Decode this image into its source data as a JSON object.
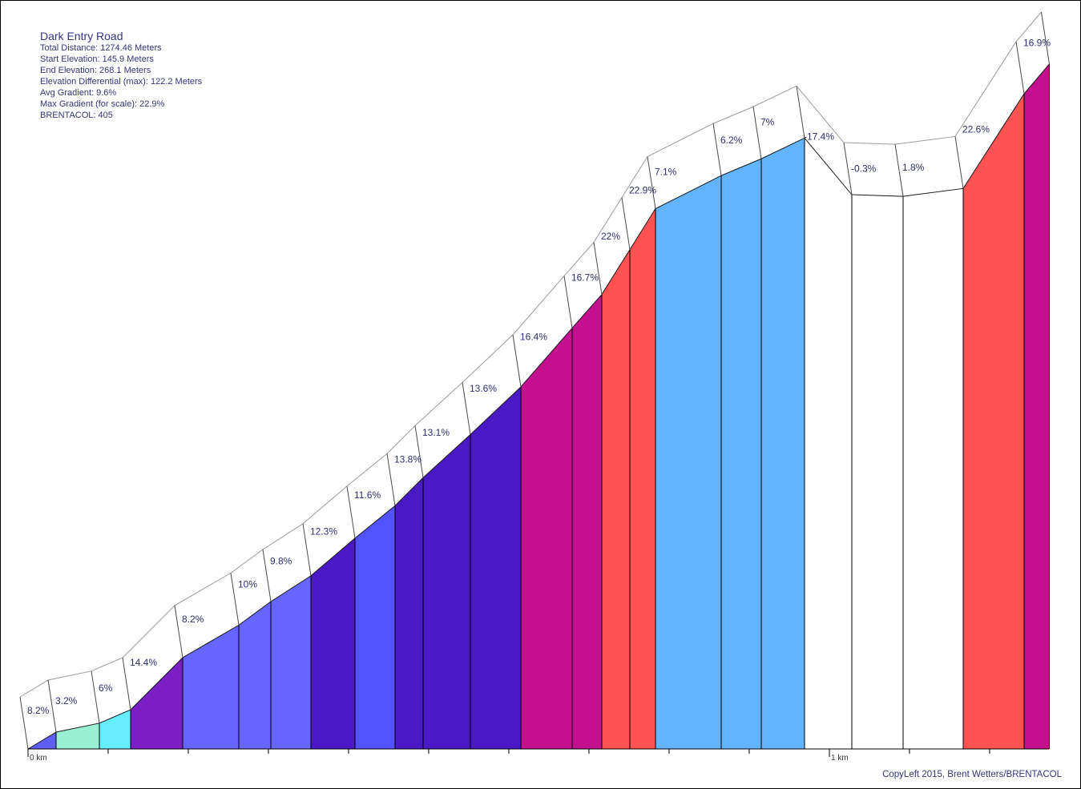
{
  "chart_data": {
    "type": "area",
    "title": "Dark Entry Road",
    "info": [
      "Total Distance: 1274.46 Meters",
      "Start Elevation: 145.9 Meters",
      "End Elevation: 268.1 Meters",
      "Elevation Differential (max): 122.2 Meters",
      "Avg Gradient: 9.6%",
      "Max Gradient (for scale): 22.9%",
      "BRENTACOL: 405"
    ],
    "x_ticks": [
      {
        "value": 0,
        "label": "0 km"
      },
      {
        "value": 1,
        "label": "1 km"
      }
    ],
    "x_range": [
      0,
      1.27446
    ],
    "elevation_range": [
      145.9,
      268.1
    ],
    "distance_km": [
      0,
      0.035,
      0.089,
      0.128,
      0.193,
      0.263,
      0.303,
      0.353,
      0.408,
      0.458,
      0.493,
      0.552,
      0.615,
      0.679,
      0.716,
      0.751,
      0.783,
      0.865,
      0.915,
      0.969,
      1.028,
      1.092,
      1.167,
      1.243,
      1.27446
    ],
    "elevation_m": [
      145.9,
      148.9,
      150.5,
      152.9,
      162.2,
      168.0,
      172.2,
      176.8,
      183.5,
      189.3,
      194.3,
      202.0,
      210.5,
      221.0,
      227.0,
      235.0,
      242.3,
      248.2,
      251.2,
      254.9,
      244.8,
      244.5,
      245.9,
      262.8,
      268.1
    ],
    "segments": [
      {
        "gradient": "8.2%",
        "color": "#5e5ef5"
      },
      {
        "gradient": "3.2%",
        "color": "#99f0d2"
      },
      {
        "gradient": "6%",
        "color": "#66eeff"
      },
      {
        "gradient": "14.4%",
        "color": "#7b1ec4"
      },
      {
        "gradient": "8.2%",
        "color": "#6666ff"
      },
      {
        "gradient": "10%",
        "color": "#6666ff"
      },
      {
        "gradient": "9.8%",
        "color": "#6666ff"
      },
      {
        "gradient": "12.3%",
        "color": "#4a18c4"
      },
      {
        "gradient": "11.6%",
        "color": "#5252ff"
      },
      {
        "gradient": "13.8%",
        "color": "#4a18c4"
      },
      {
        "gradient": "13.1%",
        "color": "#4a18c4"
      },
      {
        "gradient": "13.6%",
        "color": "#4a18c4"
      },
      {
        "gradient": "16.4%",
        "color": "#c2108e"
      },
      {
        "gradient": "16.7%",
        "color": "#c2108e"
      },
      {
        "gradient": "22%",
        "color": "#ff5252"
      },
      {
        "gradient": "22.9%",
        "color": "#ff5252"
      },
      {
        "gradient": "7.1%",
        "color": "#63b4ff"
      },
      {
        "gradient": "6.2%",
        "color": "#63b4ff"
      },
      {
        "gradient": "7%",
        "color": "#63b4ff"
      },
      {
        "gradient": "-17.4%",
        "color": "#ffffff"
      },
      {
        "gradient": "-0.3%",
        "color": "#ffffff"
      },
      {
        "gradient": "1.8%",
        "color": "#ffffff"
      },
      {
        "gradient": "22.6%",
        "color": "#ff5252"
      },
      {
        "gradient": "16.9%",
        "color": "#c2108e"
      }
    ]
  },
  "footer": {
    "credit": "CopyLeft 2015, Brent Wetters/BRENTACOL"
  }
}
